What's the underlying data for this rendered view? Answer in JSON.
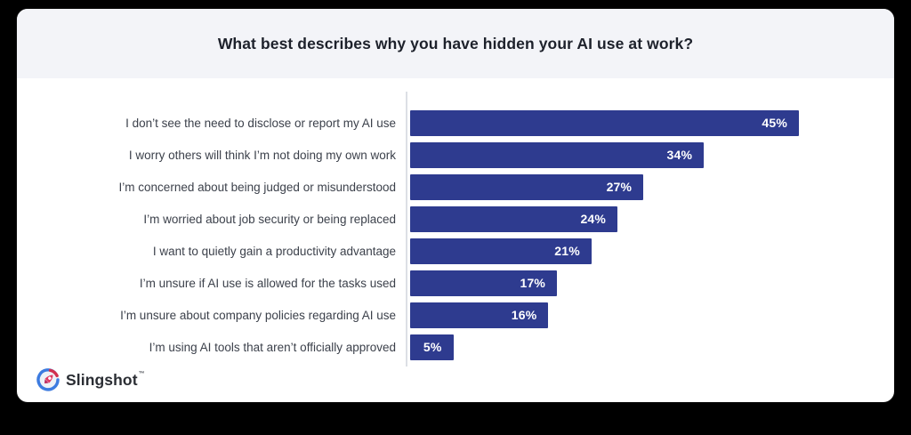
{
  "header": {
    "title": "What best describes why you have hidden your AI use at work?"
  },
  "chart_data": {
    "type": "bar",
    "orientation": "horizontal",
    "title": "What best describes why you have hidden your AI use at work?",
    "categories": [
      "I don’t see the need to disclose or report my AI use",
      "I worry others will think I’m not doing my own work",
      "I’m concerned about being judged or misunderstood",
      "I’m worried about job security or being replaced",
      "I want to quietly gain a productivity advantage",
      "I’m unsure if AI use is allowed for the tasks used",
      "I’m unsure about company policies regarding AI use",
      "I’m using AI tools that aren’t officially approved"
    ],
    "values": [
      45,
      34,
      27,
      24,
      21,
      17,
      16,
      5
    ],
    "value_suffix": "%",
    "xlabel": "",
    "ylabel": "",
    "xlim": [
      0,
      45
    ],
    "grid": false,
    "legend": "none",
    "value_label_position": "inside-end",
    "bar_color": "#2e3b8f"
  },
  "branding": {
    "logo_text": "Slingshot",
    "trademark": "™"
  },
  "colors": {
    "page_bg": "#000000",
    "card_bg": "#ffffff",
    "header_bg": "#f3f4f8",
    "bar": "#2e3b8f",
    "axis": "#dcdfe5",
    "title_text": "#1d212b",
    "label_text": "#3c414b",
    "value_text": "#ffffff"
  }
}
